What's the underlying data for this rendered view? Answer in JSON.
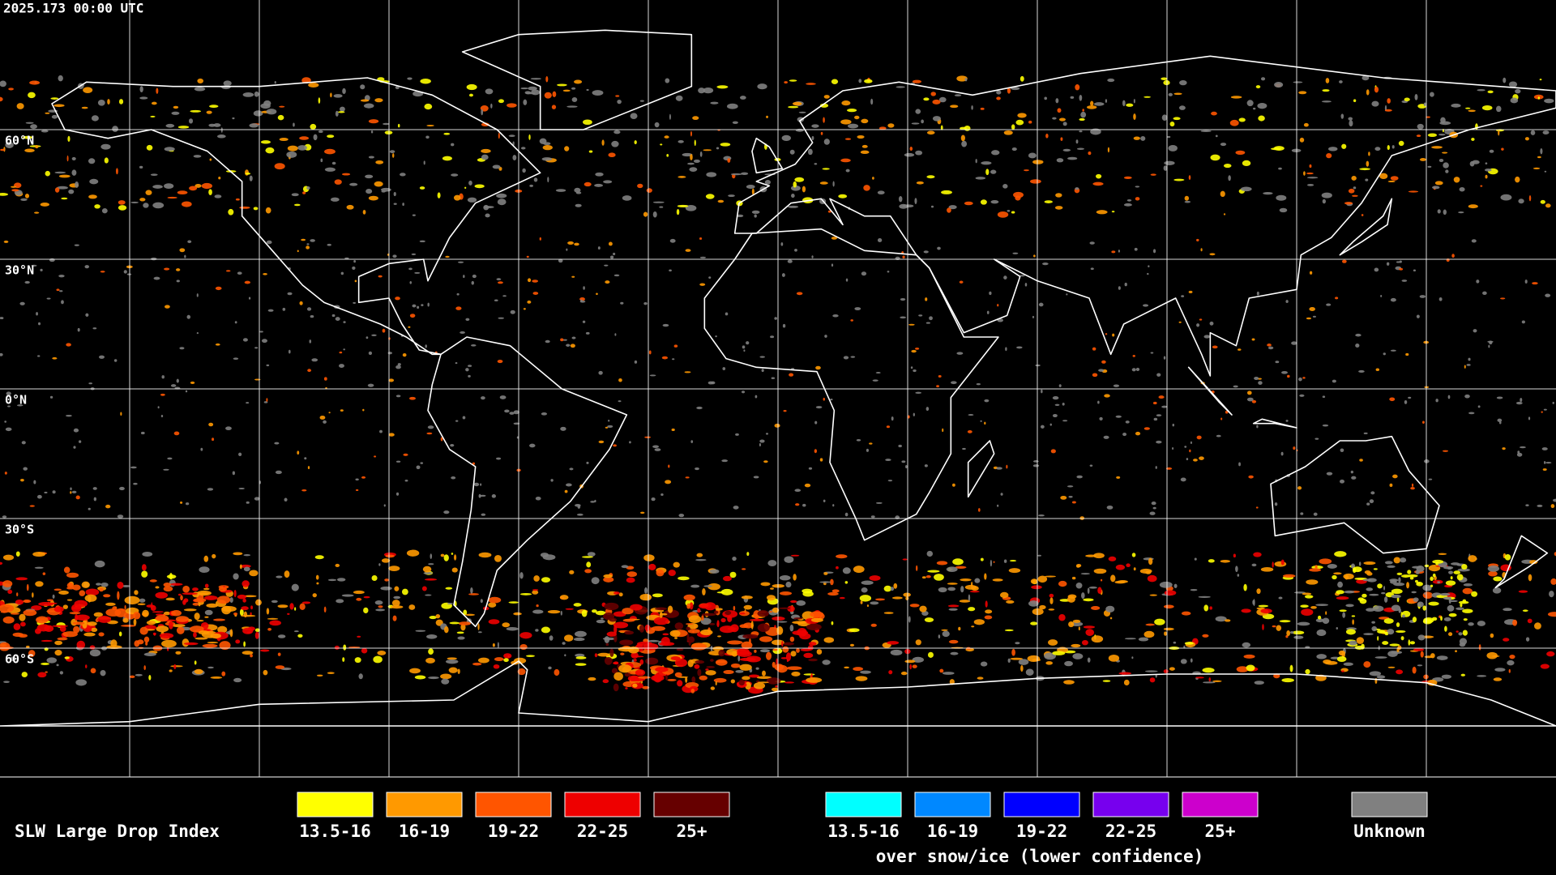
{
  "timestamp": "2025.173 00:00 UTC",
  "lat_labels": [
    "60°N",
    "30°N",
    "0°N",
    "30°S",
    "60°S"
  ],
  "legend": {
    "title": "SLW Large Drop Index",
    "items": [
      {
        "label": "13.5-16",
        "color": "#ffff00"
      },
      {
        "label": "16-19",
        "color": "#ff9900"
      },
      {
        "label": "19-22",
        "color": "#ff5500"
      },
      {
        "label": "22-25",
        "color": "#ee0000"
      },
      {
        "label": "25+",
        "color": "#660000"
      }
    ],
    "snow_items": [
      {
        "label": "13.5-16",
        "color": "#00ffff"
      },
      {
        "label": "16-19",
        "color": "#0088ff"
      },
      {
        "label": "19-22",
        "color": "#0000ff"
      },
      {
        "label": "22-25",
        "color": "#7700ee"
      },
      {
        "label": "25+",
        "color": "#cc00cc"
      }
    ],
    "snow_caption": "over snow/ice (lower confidence)",
    "unknown": {
      "label": "Unknown",
      "color": "#808080"
    }
  }
}
